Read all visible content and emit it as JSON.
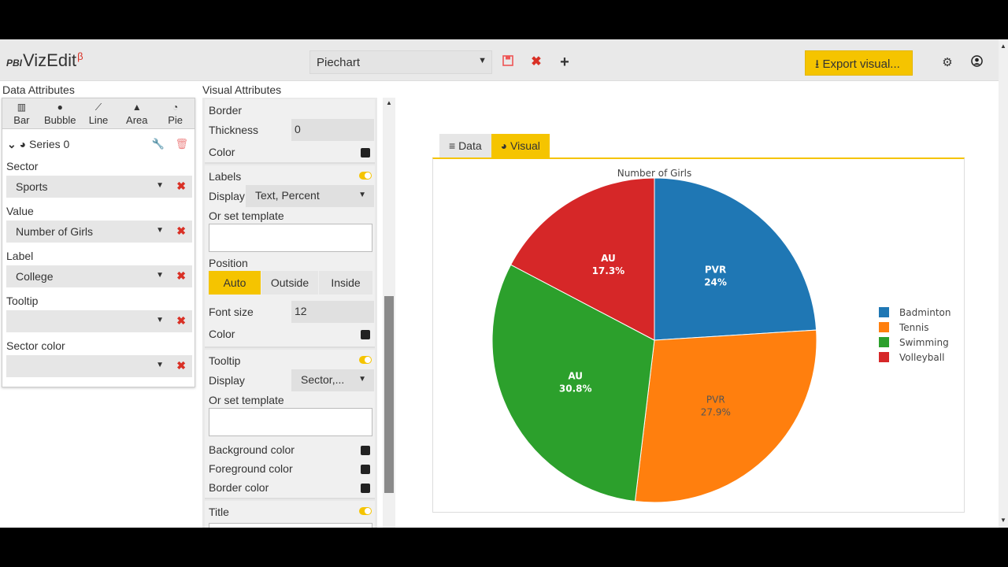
{
  "app": {
    "logo_prefix": "PBI",
    "logo_text": "VizEdit",
    "logo_beta": "β"
  },
  "toolbar": {
    "chart_name": "Piechart",
    "export_label": "Export visual..."
  },
  "data_panel": {
    "title": "Data Attributes",
    "chart_types": [
      {
        "label": "Bar",
        "icon": "bar-chart-icon"
      },
      {
        "label": "Bubble",
        "icon": "bubble-icon"
      },
      {
        "label": "Line",
        "icon": "line-chart-icon"
      },
      {
        "label": "Area",
        "icon": "area-chart-icon"
      },
      {
        "label": "Pie",
        "icon": "pie-chart-icon"
      }
    ],
    "series_label": "Series 0",
    "fields": [
      {
        "label": "Sector",
        "value": "Sports"
      },
      {
        "label": "Value",
        "value": "Number of Girls"
      },
      {
        "label": "Label",
        "value": "College"
      },
      {
        "label": "Tooltip",
        "value": ""
      },
      {
        "label": "Sector color",
        "value": ""
      }
    ]
  },
  "visual_panel": {
    "title": "Visual Attributes",
    "border": {
      "heading": "Border",
      "thickness_label": "Thickness",
      "thickness_value": "0",
      "color_label": "Color"
    },
    "labels": {
      "heading": "Labels",
      "display_label": "Display",
      "display_value": "Text, Percent",
      "template_label": "Or set template",
      "position_label": "Position",
      "position_options": [
        "Auto",
        "Outside",
        "Inside"
      ],
      "position_selected": "Auto",
      "font_size_label": "Font size",
      "font_size_value": "12",
      "color_label": "Color"
    },
    "tooltip": {
      "heading": "Tooltip",
      "display_label": "Display",
      "display_value": "Sector,...",
      "template_label": "Or set template",
      "bg_label": "Background color",
      "fg_label": "Foreground color",
      "border_label": "Border color"
    },
    "title_section": {
      "heading": "Title"
    }
  },
  "tabs": [
    {
      "label": "Data",
      "active": false
    },
    {
      "label": "Visual",
      "active": true
    }
  ],
  "chart_data": {
    "type": "pie",
    "title": "Number of Girls",
    "categories": [
      "Badminton",
      "Tennis",
      "Swimming",
      "Volleyball"
    ],
    "values": [
      24,
      27.9,
      30.8,
      17.3
    ],
    "labels": [
      "PVR",
      "PVR",
      "AU",
      "AU"
    ],
    "percent_text": [
      "24%",
      "27.9%",
      "30.8%",
      "17.3%"
    ],
    "colors": [
      "#1f77b4",
      "#ff7f0e",
      "#2ca02c",
      "#d62728"
    ],
    "legend_position": "right"
  }
}
